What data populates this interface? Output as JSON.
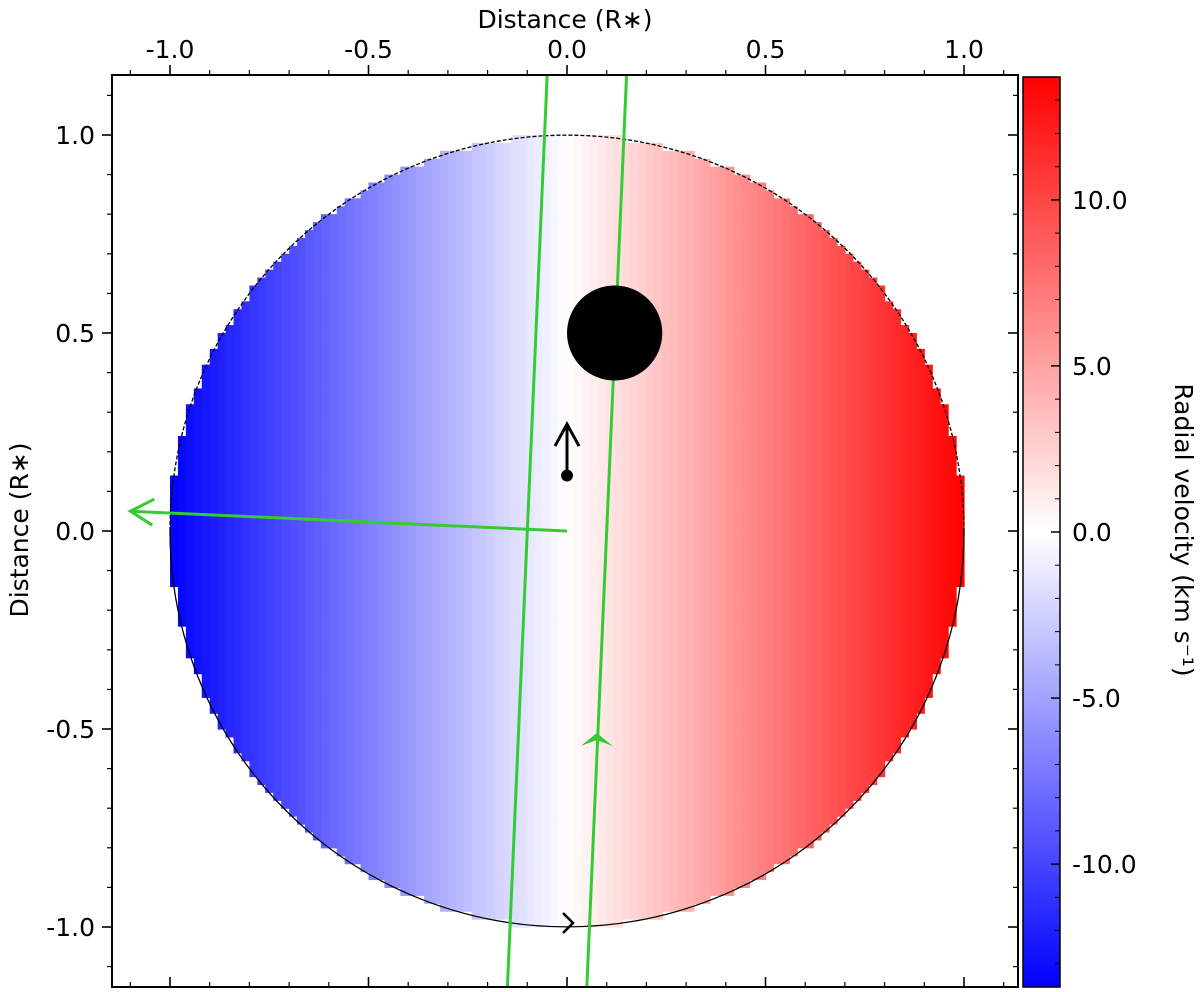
{
  "chart_data": {
    "type": "heatmap",
    "description_kind": "stellar disk radial-velocity map with planet transit chord",
    "x_axis": {
      "label": "Distance (R∗)",
      "position": "top",
      "range": [
        -1.15,
        1.15
      ],
      "major_ticks": [
        -1.0,
        -0.5,
        0.0,
        0.5,
        1.0
      ],
      "tick_labels": [
        "-1.0",
        "-0.5",
        "0.0",
        "0.5",
        "1.0"
      ]
    },
    "y_axis": {
      "label": "Distance (R∗)",
      "range": [
        -1.15,
        1.15
      ],
      "major_ticks": [
        1.0,
        0.5,
        0.0,
        -0.5,
        -1.0
      ],
      "tick_labels": [
        "1.0",
        "0.5",
        "0.0",
        "-0.5",
        "-1.0"
      ]
    },
    "colorbar": {
      "label": "Radial velocity (km s⁻¹)",
      "range": [
        -13.7,
        13.7
      ],
      "ticks": [
        10.0,
        5.0,
        0.0,
        -5.0,
        -10.0
      ],
      "tick_labels": [
        "10.0",
        "5.0",
        "0.0",
        "-5.0",
        "-10.0"
      ],
      "colormap": "bwr",
      "colors": {
        "low": "#0000ff",
        "mid": "#ffffff",
        "high": "#ff0000"
      }
    },
    "star": {
      "center": [
        0.0,
        0.0
      ],
      "radius": 1.0,
      "vsini": 13.7
    },
    "planet": {
      "center": [
        0.12,
        0.5
      ],
      "radius": 0.12
    },
    "transit_chord": {
      "points": [
        [
          0.05,
          -1.15
        ],
        [
          0.15,
          1.15
        ]
      ]
    },
    "second_chord": {
      "points": [
        [
          -0.15,
          -1.15
        ],
        [
          -0.05,
          1.15
        ]
      ]
    },
    "stellar_spin_axis_vector": {
      "start": [
        0.0,
        0.0
      ],
      "end": [
        -1.1,
        0.05
      ]
    },
    "orbit_normal_marker": {
      "start": [
        0.0,
        0.14
      ],
      "end": [
        0.0,
        0.27
      ]
    },
    "disk_direction_marker": {
      "at": [
        0.0,
        -0.99
      ]
    },
    "colors": {
      "chord": "#33cc33",
      "planet": "#000000",
      "marker": "#000000"
    }
  }
}
